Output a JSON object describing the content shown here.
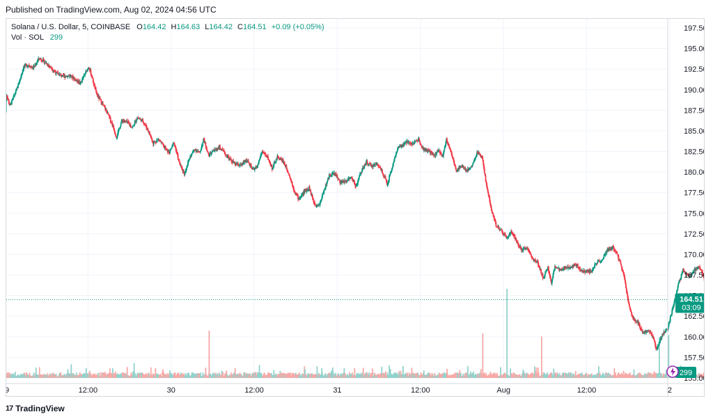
{
  "header": {
    "published": "Published on TradingView.com, Aug 02, 2024 04:56 UTC"
  },
  "legend": {
    "symbol": "Solana / U.S. Dollar, 5, COINBASE",
    "open_label": "O",
    "open": "164.42",
    "high_label": "H",
    "high": "164.63",
    "low_label": "L",
    "low": "164.42",
    "close_label": "C",
    "close": "164.51",
    "change": "+0.09 (+0.05%)",
    "volume_label": "Vol · SOL",
    "volume_value": "299"
  },
  "price_badge": {
    "price": "164.51",
    "countdown": "03:09"
  },
  "volume_badge": "299",
  "brand": "TradingView",
  "colors": {
    "up": "#089981",
    "down": "#f23645",
    "up_volume": "#92d2cc",
    "down_volume": "#f7a9a7",
    "grid": "#f0f3fa",
    "price_line": "#089981"
  },
  "chart_data": {
    "type": "candlestick",
    "interval": "5",
    "exchange": "COINBASE",
    "pair": "SOL/USD",
    "y_ticks": [
      "197.50",
      "195.00",
      "192.50",
      "190.00",
      "187.50",
      "185.00",
      "182.50",
      "180.00",
      "177.50",
      "175.00",
      "172.50",
      "170.00",
      "167.50",
      "165.00",
      "162.50",
      "160.00",
      "157.50",
      "155.00"
    ],
    "ylim": [
      155,
      198.6
    ],
    "x_ticks": [
      "9",
      "12:00",
      "30",
      "12:00",
      "31",
      "12:00",
      "Aug",
      "12:00",
      "2"
    ],
    "x_tick_times_hours": [
      0,
      12,
      24,
      36,
      48,
      60,
      72,
      84,
      96
    ],
    "xlim_hours": [
      0,
      113
    ],
    "last_price": 164.51,
    "price_path": [
      [
        0,
        184.6
      ],
      [
        0.3,
        189.5
      ],
      [
        0.8,
        188.0
      ],
      [
        1.4,
        189.2
      ],
      [
        2,
        190.5
      ],
      [
        2.8,
        192.8
      ],
      [
        3.5,
        193.0
      ],
      [
        4.2,
        192.6
      ],
      [
        5,
        193.8
      ],
      [
        5.8,
        193.4
      ],
      [
        6.6,
        192.8
      ],
      [
        7.5,
        192.0
      ],
      [
        8.5,
        191.6
      ],
      [
        9.5,
        191.7
      ],
      [
        10.3,
        191.2
      ],
      [
        11,
        190.8
      ],
      [
        11.6,
        191.8
      ],
      [
        12.2,
        192.8
      ],
      [
        12.7,
        191.4
      ],
      [
        13.3,
        189.5
      ],
      [
        14,
        188.5
      ],
      [
        14.8,
        187.3
      ],
      [
        15.6,
        185.8
      ],
      [
        16.2,
        184.2
      ],
      [
        17,
        186.3
      ],
      [
        17.8,
        186.0
      ],
      [
        18.5,
        185.4
      ],
      [
        19.2,
        186.6
      ],
      [
        20,
        186.2
      ],
      [
        20.8,
        185.0
      ],
      [
        21.5,
        183.5
      ],
      [
        22.3,
        184.0
      ],
      [
        23,
        183.1
      ],
      [
        23.8,
        182.3
      ],
      [
        24.5,
        183.6
      ],
      [
        25.3,
        181.0
      ],
      [
        26,
        179.8
      ],
      [
        26.8,
        181.8
      ],
      [
        27.5,
        182.8
      ],
      [
        28.2,
        182.3
      ],
      [
        28.8,
        184.0
      ],
      [
        29.5,
        182.0
      ],
      [
        30.3,
        182.6
      ],
      [
        31,
        183.0
      ],
      [
        31.8,
        182.3
      ],
      [
        32.6,
        181.5
      ],
      [
        33.4,
        180.9
      ],
      [
        34.2,
        180.8
      ],
      [
        35,
        181.5
      ],
      [
        35.8,
        180.3
      ],
      [
        36.5,
        180.6
      ],
      [
        37.2,
        182.5
      ],
      [
        38,
        181.8
      ],
      [
        38.7,
        180.4
      ],
      [
        39.4,
        181.8
      ],
      [
        40.2,
        181.4
      ],
      [
        41,
        180.0
      ],
      [
        41.8,
        177.9
      ],
      [
        42.5,
        176.7
      ],
      [
        43.3,
        177.6
      ],
      [
        44,
        178.1
      ],
      [
        44.8,
        176.1
      ],
      [
        45.5,
        176.0
      ],
      [
        46.2,
        177.9
      ],
      [
        47,
        179.7
      ],
      [
        47.8,
        179.8
      ],
      [
        48.5,
        178.7
      ],
      [
        49.3,
        178.9
      ],
      [
        50,
        179.4
      ],
      [
        50.8,
        178.3
      ],
      [
        51.5,
        180.0
      ],
      [
        52.3,
        181.2
      ],
      [
        53,
        180.7
      ],
      [
        53.8,
        181.0
      ],
      [
        54.5,
        180.2
      ],
      [
        55.3,
        178.5
      ],
      [
        56,
        180.6
      ],
      [
        56.8,
        182.9
      ],
      [
        57.5,
        183.2
      ],
      [
        58.2,
        183.7
      ],
      [
        59,
        183.4
      ],
      [
        59.8,
        184.0
      ],
      [
        60.5,
        182.8
      ],
      [
        61.3,
        182.5
      ],
      [
        62,
        182.0
      ],
      [
        62.8,
        182.6
      ],
      [
        63.3,
        181.8
      ],
      [
        63.8,
        184.0
      ],
      [
        64.5,
        182.4
      ],
      [
        65.2,
        180.2
      ],
      [
        66,
        180.8
      ],
      [
        66.8,
        180.2
      ],
      [
        67.5,
        180.7
      ],
      [
        68.3,
        182.4
      ],
      [
        69,
        181.8
      ],
      [
        69.6,
        178.5
      ],
      [
        70.3,
        175.5
      ],
      [
        71,
        173.5
      ],
      [
        71.8,
        172.8
      ],
      [
        72.5,
        172.0
      ],
      [
        73.3,
        172.8
      ],
      [
        74,
        171.5
      ],
      [
        74.8,
        170.5
      ],
      [
        75.5,
        170.8
      ],
      [
        76.3,
        169.5
      ],
      [
        77,
        169.0
      ],
      [
        77.8,
        167.2
      ],
      [
        78.5,
        168.4
      ],
      [
        79,
        166.5
      ],
      [
        79.5,
        168.6
      ],
      [
        80.3,
        168.0
      ],
      [
        81,
        168.4
      ],
      [
        81.8,
        168.5
      ],
      [
        82.5,
        168.8
      ],
      [
        83.3,
        168.1
      ],
      [
        84,
        167.9
      ],
      [
        84.8,
        168.0
      ],
      [
        85.5,
        169.0
      ],
      [
        86.3,
        169.3
      ],
      [
        87,
        170.4
      ],
      [
        87.8,
        170.9
      ],
      [
        88.5,
        170.0
      ],
      [
        89,
        168.8
      ],
      [
        89.6,
        166.9
      ],
      [
        90.2,
        163.7
      ],
      [
        90.8,
        162.1
      ],
      [
        91.5,
        161.7
      ],
      [
        92.2,
        160.5
      ],
      [
        93,
        160.8
      ],
      [
        93.6,
        160.0
      ],
      [
        94.2,
        158.4
      ],
      [
        95,
        160.3
      ],
      [
        95.8,
        161.0
      ],
      [
        96.5,
        163.5
      ],
      [
        97.3,
        166.3
      ],
      [
        98,
        168.1
      ],
      [
        98.8,
        167.3
      ],
      [
        99.5,
        167.9
      ],
      [
        100.2,
        168.6
      ],
      [
        100.8,
        167.6
      ],
      [
        101.5,
        165.6
      ],
      [
        102.3,
        164.1
      ],
      [
        103,
        162.8
      ],
      [
        103.8,
        163.9
      ],
      [
        104.5,
        164.2
      ],
      [
        105.3,
        164.5
      ],
      [
        106,
        164.5
      ]
    ],
    "volume_spikes": [
      [
        72.5,
        "up"
      ],
      [
        77.5,
        "down"
      ],
      [
        94.5,
        "down"
      ],
      [
        69,
        "down"
      ],
      [
        29.5,
        "down"
      ],
      [
        95.8,
        "down"
      ]
    ]
  }
}
